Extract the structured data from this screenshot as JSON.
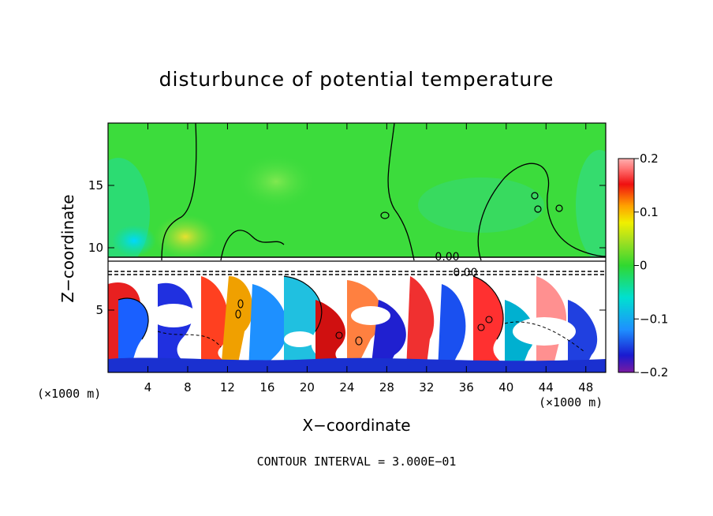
{
  "chart_data": {
    "type": "heatmap",
    "title": "disturbunce of potential temperature",
    "xlabel": "X−coordinate",
    "ylabel": "Z−coordinate",
    "x_unit_left": "(×1000 m)",
    "x_unit_right": "(×1000 m)",
    "xlim": [
      0,
      50
    ],
    "ylim": [
      0,
      20
    ],
    "xticks": [
      4,
      8,
      12,
      16,
      20,
      24,
      28,
      32,
      36,
      40,
      44,
      48
    ],
    "yticks": [
      5,
      10,
      15
    ],
    "colorbar": {
      "range": [
        -0.2,
        0.2
      ],
      "tick_labels": [
        "0.2",
        "0.1",
        "0",
        "−0.1",
        "−0.2"
      ],
      "tick_values": [
        0.2,
        0.1,
        0,
        -0.1,
        -0.2
      ]
    },
    "contour_labels": [
      "0.00",
      "0.00"
    ],
    "footer": "CONTOUR INTERVAL = 3.000E−01",
    "regions": [
      {
        "zone": "upper",
        "z_range": [
          9,
          20
        ],
        "value": 0.0
      },
      {
        "zone": "band",
        "z_range": [
          8,
          9
        ],
        "value": -0.3
      },
      {
        "zone": "lower",
        "z_range": [
          0,
          8
        ],
        "value_range": [
          -0.2,
          0.2
        ]
      }
    ]
  },
  "colors": {
    "green": "#3cdc3c",
    "white": "#ffffff",
    "cyan": "#00e0c8"
  }
}
